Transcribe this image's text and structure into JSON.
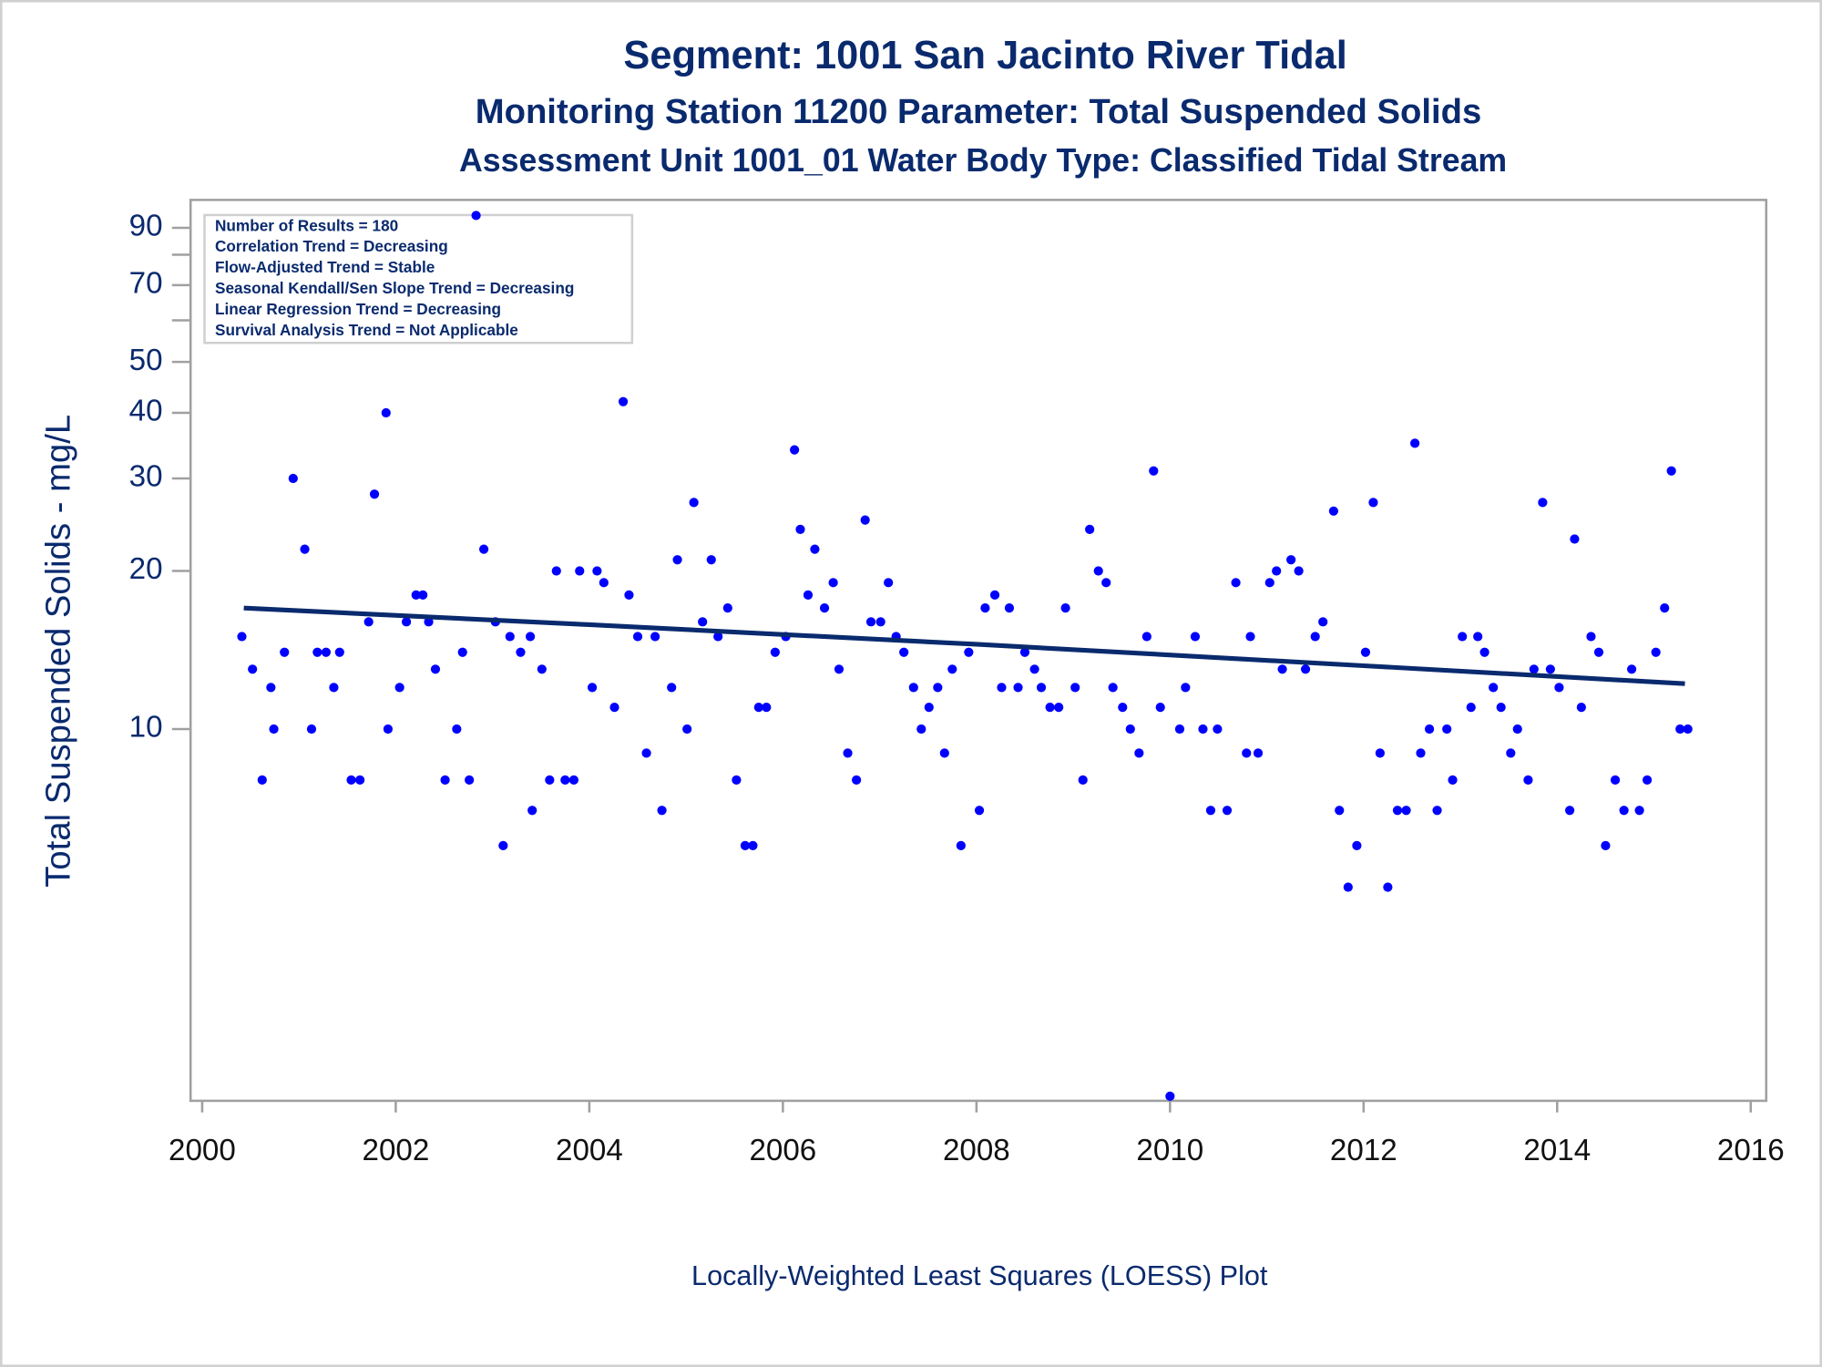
{
  "chart_data": {
    "type": "scatter",
    "title": "Segment: 1001  San Jacinto River Tidal",
    "subtitle": "Monitoring Station 11200 Parameter: Total Suspended Solids",
    "subtitle2": "Assessment Unit 1001_01   Water Body Type: Classified Tidal Stream",
    "y_label": "Total Suspended Solids - mg/L",
    "caption": "Locally-Weighted Least Squares (LOESS) Plot",
    "annotations": [
      "Number of Results = 180",
      "Correlation Trend = Decreasing",
      "Flow-Adjusted Trend = Stable",
      "Seasonal Kendall/Sen Slope Trend = Decreasing",
      "Linear Regression Trend = Decreasing",
      "Survival Analysis Trend = Not Applicable"
    ],
    "log_y": true,
    "xlim": [
      1999.88,
      2016.16
    ],
    "xticks": [
      2000,
      2002,
      2004,
      2006,
      2008,
      2010,
      2012,
      2014,
      2016
    ],
    "ylim": [
      1.96,
      101.7
    ],
    "yticks": [
      10,
      20,
      30,
      40,
      50,
      70,
      90
    ],
    "yminor": [
      60,
      80
    ],
    "series": [
      {
        "type": "scatter",
        "color": "#0000ff",
        "x": [
          2000.41,
          2000.52,
          2000.62,
          2000.71,
          2000.74,
          2000.85,
          2000.94,
          2001.06,
          2001.13,
          2001.19,
          2001.28,
          2001.36,
          2001.42,
          2001.54,
          2001.63,
          2001.72,
          2001.78,
          2001.9,
          2001.92,
          2002.04,
          2002.11,
          2002.21,
          2002.28,
          2002.34,
          2002.41,
          2002.51,
          2002.63,
          2002.69,
          2002.76,
          2002.83,
          2002.91,
          2003.03,
          2003.11,
          2003.18,
          2003.29,
          2003.39,
          2003.41,
          2003.51,
          2003.59,
          2003.66,
          2003.75,
          2003.84,
          2003.9,
          2004.03,
          2004.08,
          2004.15,
          2004.26,
          2004.35,
          2004.41,
          2004.5,
          2004.59,
          2004.68,
          2004.75,
          2004.85,
          2004.91,
          2005.01,
          2005.08,
          2005.17,
          2005.26,
          2005.33,
          2005.43,
          2005.52,
          2005.61,
          2005.69,
          2005.75,
          2005.83,
          2005.92,
          2006.03,
          2006.12,
          2006.18,
          2006.26,
          2006.33,
          2006.43,
          2006.52,
          2006.58,
          2006.67,
          2006.76,
          2006.85,
          2006.91,
          2007.01,
          2007.09,
          2007.17,
          2007.25,
          2007.35,
          2007.43,
          2007.51,
          2007.6,
          2007.67,
          2007.75,
          2007.84,
          2007.92,
          2008.03,
          2008.09,
          2008.19,
          2008.26,
          2008.34,
          2008.43,
          2008.5,
          2008.6,
          2008.67,
          2008.76,
          2008.85,
          2008.92,
          2009.02,
          2009.1,
          2009.17,
          2009.26,
          2009.34,
          2009.41,
          2009.51,
          2009.59,
          2009.68,
          2009.76,
          2009.83,
          2009.9,
          2010.0,
          2010.1,
          2010.16,
          2010.26,
          2010.34,
          2010.42,
          2010.49,
          2010.59,
          2010.68,
          2010.79,
          2010.83,
          2010.91,
          2011.03,
          2011.1,
          2011.16,
          2011.25,
          2011.33,
          2011.4,
          2011.5,
          2011.58,
          2011.69,
          2011.75,
          2011.84,
          2011.93,
          2012.02,
          2012.1,
          2012.17,
          2012.25,
          2012.35,
          2012.44,
          2012.53,
          2012.59,
          2012.68,
          2012.76,
          2012.86,
          2012.92,
          2013.02,
          2013.11,
          2013.18,
          2013.25,
          2013.34,
          2013.42,
          2013.52,
          2013.59,
          2013.7,
          2013.76,
          2013.85,
          2013.93,
          2014.02,
          2014.13,
          2014.18,
          2014.25,
          2014.35,
          2014.43,
          2014.5,
          2014.6,
          2014.69,
          2014.77,
          2014.85,
          2014.93,
          2015.02,
          2015.11,
          2015.18,
          2015.27,
          2015.35
        ],
        "values": [
          15,
          13,
          8,
          12,
          10,
          14,
          30,
          22,
          10,
          14,
          14,
          12,
          14,
          8,
          8,
          16,
          28,
          40,
          10,
          12,
          16,
          18,
          18,
          16,
          13,
          8,
          10,
          14,
          8,
          95,
          22,
          16,
          6,
          15,
          14,
          15,
          7,
          13,
          8,
          20,
          8,
          8,
          20,
          12,
          20,
          19,
          11,
          42,
          18,
          15,
          9,
          15,
          7,
          12,
          21,
          10,
          27,
          16,
          21,
          15,
          17,
          8,
          6,
          6,
          11,
          11,
          14,
          15,
          34,
          24,
          18,
          22,
          17,
          19,
          13,
          9,
          8,
          25,
          16,
          16,
          19,
          15,
          14,
          12,
          10,
          11,
          12,
          9,
          13,
          6,
          14,
          7,
          17,
          18,
          12,
          17,
          12,
          14,
          13,
          12,
          11,
          11,
          17,
          12,
          8,
          24,
          20,
          19,
          12,
          11,
          10,
          9,
          15,
          31,
          11,
          2,
          10,
          12,
          15,
          10,
          7,
          10,
          7,
          19,
          9,
          15,
          9,
          19,
          20,
          13,
          21,
          20,
          13,
          15,
          16,
          26,
          7,
          5,
          6,
          14,
          27,
          9,
          5,
          7,
          7,
          35,
          9,
          10,
          7,
          10,
          8,
          15,
          11,
          15,
          14,
          12,
          11,
          9,
          10,
          8,
          13,
          27,
          13,
          12,
          7,
          23,
          11,
          15,
          14,
          6,
          8,
          7,
          13,
          7,
          8,
          14,
          17,
          31,
          10,
          10
        ]
      },
      {
        "type": "line",
        "color": "#0a2a6e",
        "x": [
          2000.43,
          2004.0,
          2008.0,
          2012.0,
          2015.32
        ],
        "values": [
          17,
          15.8,
          14.5,
          13.2,
          12.2
        ]
      }
    ]
  }
}
